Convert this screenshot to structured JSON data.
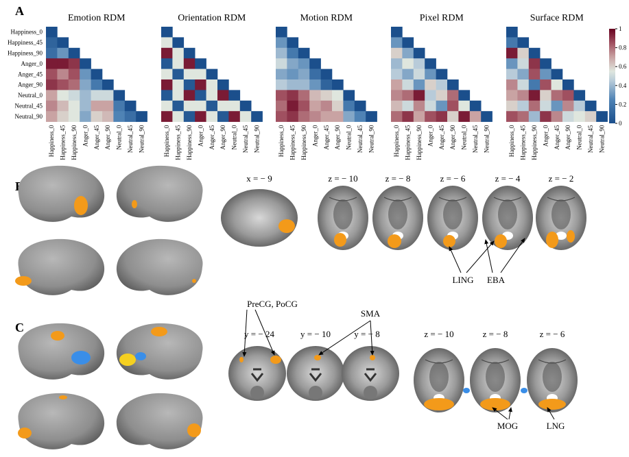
{
  "panel_a": {
    "label": "A",
    "conditions": [
      "Happiness_0",
      "Happiness_45",
      "Happiness_90",
      "Anger_0",
      "Anger_45",
      "Anger_90",
      "Neutral_0",
      "Neutral_45",
      "Neutral_90"
    ],
    "rdms": [
      {
        "title": "Emotion RDM",
        "values": [
          [
            0
          ],
          [
            0.1,
            0
          ],
          [
            0.15,
            0.3,
            0
          ],
          [
            0.95,
            0.95,
            0.9,
            0
          ],
          [
            0.85,
            0.75,
            0.85,
            0.3,
            0
          ],
          [
            0.9,
            0.85,
            0.8,
            0.35,
            0.2,
            0
          ],
          [
            0.7,
            0.55,
            0.5,
            0.4,
            0.5,
            0.5,
            0
          ],
          [
            0.75,
            0.65,
            0.55,
            0.4,
            0.7,
            0.7,
            0.2,
            0
          ],
          [
            0.7,
            0.6,
            0.55,
            0.35,
            0.6,
            0.65,
            0.25,
            0.15,
            0
          ]
        ]
      },
      {
        "title": "Orientation RDM",
        "values": [
          [
            0
          ],
          [
            0.55,
            0
          ],
          [
            0.95,
            0.55,
            0
          ],
          [
            0.05,
            0.55,
            0.95,
            0
          ],
          [
            0.55,
            0.05,
            0.55,
            0.55,
            0
          ],
          [
            0.95,
            0.55,
            0.05,
            0.95,
            0.55,
            0
          ],
          [
            0.05,
            0.55,
            0.95,
            0.05,
            0.55,
            0.95,
            0
          ],
          [
            0.55,
            0.05,
            0.55,
            0.55,
            0.05,
            0.55,
            0.55,
            0
          ],
          [
            0.95,
            0.55,
            0.05,
            0.95,
            0.55,
            0.05,
            0.95,
            0.55,
            0
          ]
        ]
      },
      {
        "title": "Motion RDM",
        "values": [
          [
            0
          ],
          [
            0.3,
            0
          ],
          [
            0.4,
            0.2,
            0
          ],
          [
            0.5,
            0.35,
            0.3,
            0
          ],
          [
            0.35,
            0.3,
            0.35,
            0.15,
            0
          ],
          [
            0.45,
            0.4,
            0.4,
            0.3,
            0.1,
            0
          ],
          [
            0.85,
            0.9,
            0.8,
            0.65,
            0.6,
            0.55,
            0
          ],
          [
            0.8,
            0.95,
            0.85,
            0.7,
            0.75,
            0.6,
            0.2,
            0
          ],
          [
            0.85,
            0.9,
            0.8,
            0.75,
            0.7,
            0.7,
            0.35,
            0.25,
            0
          ]
        ]
      },
      {
        "title": "Pixel RDM",
        "values": [
          [
            0
          ],
          [
            0.3,
            0
          ],
          [
            0.6,
            0.35,
            0
          ],
          [
            0.4,
            0.55,
            0.45,
            0
          ],
          [
            0.45,
            0.35,
            0.5,
            0.3,
            0
          ],
          [
            0.7,
            0.5,
            0.3,
            0.6,
            0.45,
            0
          ],
          [
            0.75,
            0.8,
            0.95,
            0.45,
            0.6,
            0.8,
            0
          ],
          [
            0.65,
            0.5,
            0.75,
            0.5,
            0.3,
            0.85,
            0.55,
            0
          ],
          [
            0.8,
            0.9,
            0.7,
            0.85,
            0.9,
            0.6,
            0.95,
            0.7,
            0
          ]
        ]
      },
      {
        "title": "Surface RDM",
        "values": [
          [
            0
          ],
          [
            0.2,
            0
          ],
          [
            0.95,
            0.6,
            0
          ],
          [
            0.3,
            0.5,
            0.9,
            0
          ],
          [
            0.45,
            0.35,
            0.85,
            0.3,
            0
          ],
          [
            0.75,
            0.5,
            0.2,
            0.85,
            0.55,
            0
          ],
          [
            0.7,
            0.75,
            0.95,
            0.6,
            0.8,
            0.85,
            0
          ],
          [
            0.6,
            0.45,
            0.8,
            0.5,
            0.3,
            0.75,
            0.45,
            0
          ],
          [
            0.85,
            0.8,
            0.4,
            0.9,
            0.75,
            0.5,
            0.55,
            0.6,
            0
          ]
        ]
      }
    ],
    "colorbar_ticks": [
      0,
      0.2,
      0.4,
      0.6,
      0.8,
      1
    ]
  },
  "panel_b": {
    "label": "B",
    "sagittal_label": "x = − 9",
    "axial_labels": [
      "z = − 10",
      "z = − 8",
      "z = − 6",
      "z = − 4",
      "z = − 2"
    ],
    "annotations": [
      "LING",
      "EBA"
    ]
  },
  "panel_c": {
    "label": "C",
    "annotations_top": [
      "PreCG, PoCG",
      "SMA"
    ],
    "coronal_labels": [
      "y = − 24",
      "y = − 10",
      "y = − 8"
    ],
    "axial_labels": [
      "z = − 10",
      "z = − 8",
      "z = − 6"
    ],
    "annotations_bottom": [
      "MOG",
      "LNG"
    ]
  }
}
